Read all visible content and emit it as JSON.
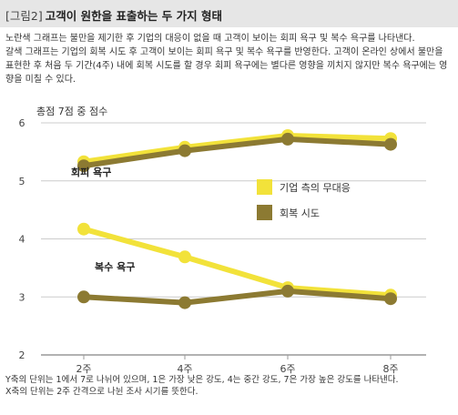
{
  "figure": {
    "number": "[그림2]",
    "title": "고객이 원한을 표출하는 두 가지 형태",
    "description_1": "노란색 그래프는 불만을 제기한 후 기업의 대응이 없을 때 고객이 보이는 회피 욕구 및 복수 욕구를 나타낸다.",
    "description_2": "갈색 그래프는 기업의 회복 시도 후 고객이 보이는 회피 욕구 및 복수 욕구를 반영한다. 고객이 온라인 상에서 불만을 표현한 후 처음 두 기간(4주) 내에 회복 시도를 할 경우 회피 욕구에는 별다른 영향을 끼치지 않지만 복수 욕구에는 영향을 미칠 수 있다.",
    "footnote_1": "Y축의 단위는 1에서 7로 나뉘어 있으며, 1은 가장 낮은 강도, 4는 중간 강도, 7은 가장 높은 강도를 나타낸다.",
    "footnote_2": "X축의 단위는 2주 간격으로 나뉜 조사 시기를 뜻한다."
  },
  "colors": {
    "yellow": "#f2e23a",
    "brown": "#8c7a32",
    "axis": "#999999",
    "grid": "#cccccc",
    "header_bg": "#e6e6e6"
  },
  "chart_data": {
    "type": "line",
    "ylabel": "총점 7점 중 점수",
    "categories": [
      "2주",
      "4주",
      "6주",
      "8주"
    ],
    "ylim": [
      2,
      6
    ],
    "yticks": [
      "6",
      "5",
      "4",
      "3",
      "2"
    ],
    "grid": true,
    "legend_position": "right",
    "legend": [
      {
        "label": "기업 측의 무대응",
        "color": "#f2e23a"
      },
      {
        "label": "회복 시도",
        "color": "#8c7a32"
      }
    ],
    "annotations": [
      "회피 욕구",
      "복수 욕구"
    ],
    "series": [
      {
        "group": "회피 욕구",
        "condition": "기업 측의 무대응",
        "color": "#f2e23a",
        "values": [
          5.33,
          5.58,
          5.78,
          5.73
        ]
      },
      {
        "group": "회피 욕구",
        "condition": "회복 시도",
        "color": "#8c7a32",
        "values": [
          5.26,
          5.52,
          5.72,
          5.63
        ]
      },
      {
        "group": "복수 욕구",
        "condition": "기업 측의 무대응",
        "color": "#f2e23a",
        "values": [
          4.17,
          3.69,
          3.16,
          3.03
        ]
      },
      {
        "group": "복수 욕구",
        "condition": "회복 시도",
        "color": "#8c7a32",
        "values": [
          3.0,
          2.9,
          3.1,
          2.97
        ]
      }
    ]
  }
}
